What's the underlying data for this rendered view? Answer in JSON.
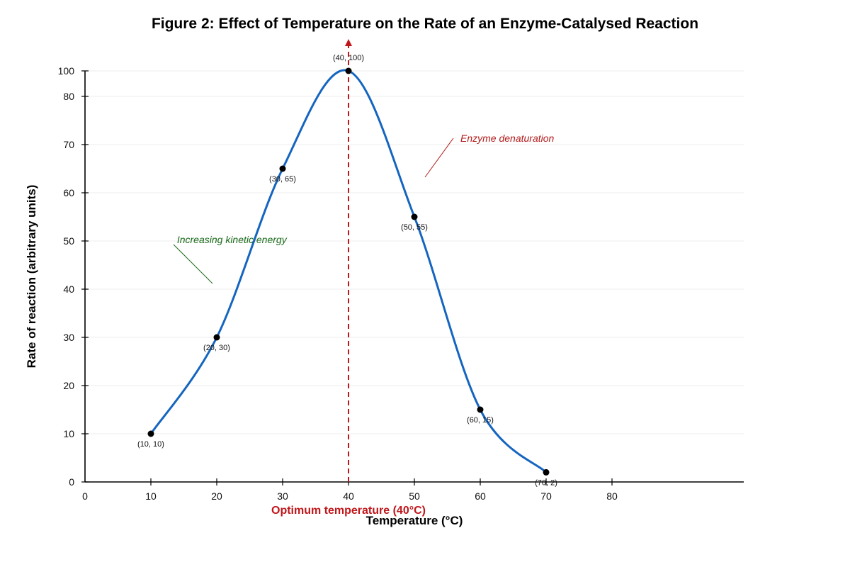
{
  "chart_data": {
    "type": "line",
    "title": "Figure 2: Effect of Temperature on the Rate of an Enzyme-Catalysed Reaction",
    "xlabel": "Temperature (°C)",
    "ylabel": "Rate of reaction (arbitrary units)",
    "x_ticks": [
      0,
      10,
      20,
      30,
      40,
      50,
      60,
      70,
      80
    ],
    "y_ticks": [
      0,
      10,
      20,
      30,
      40,
      50,
      60,
      70,
      80,
      100
    ],
    "x_axis_end": 90,
    "series": [
      {
        "color": "#1565c0",
        "points": [
          {
            "x": 10,
            "y": 10,
            "label": "(10, 10)"
          },
          {
            "x": 20,
            "y": 30,
            "label": "(20, 30)"
          },
          {
            "x": 30,
            "y": 65,
            "label": "(30, 65)"
          },
          {
            "x": 40,
            "y": 100,
            "label": "(40, 100)"
          },
          {
            "x": 50,
            "y": 55,
            "label": "(50, 55)"
          },
          {
            "x": 60,
            "y": 15,
            "label": "(60, 15)"
          },
          {
            "x": 70,
            "y": 2,
            "label": "(70, 2)"
          }
        ]
      }
    ],
    "grid": true,
    "optimum": {
      "x": 40,
      "label": "Optimum temperature (40°C)",
      "color": "#c0161a"
    },
    "annotations": [
      {
        "text": "Increasing kinetic energy",
        "color": "#1a6b1a",
        "x": 14.5,
        "y": 49
      },
      {
        "text": "Enzyme denaturation",
        "color": "#b31b1b",
        "x": 57,
        "y": 71
      }
    ]
  }
}
